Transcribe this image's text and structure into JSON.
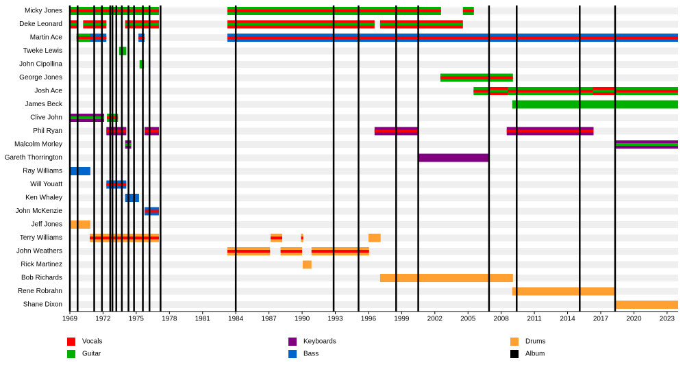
{
  "chart_data": {
    "type": "timeline",
    "xlim": [
      1969,
      2024
    ],
    "xticks": [
      1969,
      1972,
      1975,
      1978,
      1981,
      1984,
      1987,
      1990,
      1993,
      1996,
      1999,
      2002,
      2005,
      2008,
      2011,
      2014,
      2017,
      2020,
      2023
    ],
    "roles": [
      {
        "name": "Vocals",
        "color": "#ff0000"
      },
      {
        "name": "Guitar",
        "color": "#00b000"
      },
      {
        "name": "Keyboards",
        "color": "#800080"
      },
      {
        "name": "Bass",
        "color": "#0066cc"
      },
      {
        "name": "Drums",
        "color": "#ffa030"
      },
      {
        "name": "Album",
        "color": "#000000"
      }
    ],
    "albums": [
      1969.0,
      1969.7,
      1971.2,
      1971.9,
      1972.65,
      1972.85,
      1973.2,
      1973.7,
      1974.3,
      1974.8,
      1975.6,
      1976.2,
      1977.2,
      1984.0,
      1992.85,
      1995.1,
      1998.5,
      2000.5,
      2006.9,
      2009.4,
      2015.1,
      2018.3
    ],
    "rows": [
      {
        "name": "Micky Jones",
        "periods": [
          {
            "start": 1969,
            "end": 1977.05,
            "role": "Guitar",
            "stripe": "Vocals"
          },
          {
            "start": 1983.24,
            "end": 2002.56,
            "role": "Guitar",
            "stripe": "Vocals"
          },
          {
            "start": 2004.54,
            "end": 2005.53,
            "role": "Guitar",
            "stripe": "Vocals"
          }
        ]
      },
      {
        "name": "Deke Leonard",
        "periods": [
          {
            "start": 1969,
            "end": 1969.7,
            "role": "Vocals",
            "stripe": "Guitar"
          },
          {
            "start": 1970.2,
            "end": 1972.3,
            "role": "Vocals",
            "stripe": "Guitar"
          },
          {
            "start": 1974,
            "end": 1977.05,
            "role": "Vocals",
            "stripe": "Guitar"
          },
          {
            "start": 1983.24,
            "end": 1996.55,
            "role": "Vocals",
            "stripe": "Guitar"
          },
          {
            "start": 1997.05,
            "end": 2004.54,
            "role": "Vocals",
            "stripe": "Guitar"
          }
        ]
      },
      {
        "name": "Martin Ace",
        "periods": [
          {
            "start": 1969.6,
            "end": 1970.8,
            "role": "Guitar",
            "stripe": "Vocals"
          },
          {
            "start": 1970.8,
            "end": 1972.3,
            "role": "Bass",
            "stripe": "Vocals"
          },
          {
            "start": 1975.2,
            "end": 1975.75,
            "role": "Bass",
            "stripe": "Vocals"
          },
          {
            "start": 1983.24,
            "end": 2024,
            "role": "Bass",
            "stripe": "Vocals"
          }
        ]
      },
      {
        "name": "Tweke Lewis",
        "periods": [
          {
            "start": 1973.45,
            "end": 1974.1,
            "role": "Guitar"
          }
        ]
      },
      {
        "name": "John Cipollina",
        "periods": [
          {
            "start": 1975.3,
            "end": 1975.7,
            "role": "Guitar"
          }
        ]
      },
      {
        "name": "George Jones",
        "periods": [
          {
            "start": 2002.5,
            "end": 2009.06,
            "role": "Guitar",
            "stripe": "Vocals"
          }
        ]
      },
      {
        "name": "Josh Ace",
        "periods": [
          {
            "start": 2005.5,
            "end": 2024,
            "role": "Guitar",
            "stripe": "Vocals"
          },
          {
            "start": 2006.85,
            "end": 2008.6,
            "role": "Vocals",
            "stripe": "Guitar"
          },
          {
            "start": 2016.3,
            "end": 2018.35,
            "role": "Vocals",
            "stripe": "Guitar"
          }
        ]
      },
      {
        "name": "James Beck",
        "periods": [
          {
            "start": 2009,
            "end": 2024,
            "role": "Guitar"
          }
        ]
      },
      {
        "name": "Clive John",
        "periods": [
          {
            "start": 1969,
            "end": 1972.1,
            "role": "Keyboards",
            "stripe": "Guitar"
          },
          {
            "start": 1972.35,
            "end": 1973.35,
            "role": "Guitar",
            "stripe": "Vocals"
          }
        ]
      },
      {
        "name": "Phil Ryan",
        "periods": [
          {
            "start": 1972.3,
            "end": 1974.1,
            "role": "Keyboards",
            "stripe": "Vocals"
          },
          {
            "start": 1975.75,
            "end": 1977.05,
            "role": "Keyboards",
            "stripe": "Vocals"
          },
          {
            "start": 1996.55,
            "end": 2000.5,
            "role": "Keyboards",
            "stripe": "Vocals"
          },
          {
            "start": 2008.5,
            "end": 2016.35,
            "role": "Keyboards",
            "stripe": "Vocals"
          }
        ]
      },
      {
        "name": "Malcolm Morley",
        "periods": [
          {
            "start": 1974,
            "end": 1974.55,
            "role": "Keyboards",
            "stripe": "Guitar"
          },
          {
            "start": 2018.35,
            "end": 2024,
            "role": "Keyboards",
            "stripe": "Guitar"
          }
        ]
      },
      {
        "name": "Gareth Thorrington",
        "periods": [
          {
            "start": 2000.5,
            "end": 2006.95,
            "role": "Keyboards"
          }
        ]
      },
      {
        "name": "Ray Williams",
        "periods": [
          {
            "start": 1969,
            "end": 1970.85,
            "role": "Bass"
          }
        ]
      },
      {
        "name": "Will Youatt",
        "periods": [
          {
            "start": 1972.3,
            "end": 1974.1,
            "role": "Bass",
            "stripe": "Vocals"
          }
        ]
      },
      {
        "name": "Ken Whaley",
        "periods": [
          {
            "start": 1974,
            "end": 1975.25,
            "role": "Bass"
          }
        ]
      },
      {
        "name": "John McKenzie",
        "periods": [
          {
            "start": 1975.75,
            "end": 1977.05,
            "role": "Bass",
            "stripe": "Vocals"
          }
        ]
      },
      {
        "name": "Jeff Jones",
        "periods": [
          {
            "start": 1969,
            "end": 1970.85,
            "role": "Drums"
          }
        ]
      },
      {
        "name": "Terry Williams",
        "periods": [
          {
            "start": 1970.8,
            "end": 1977.05,
            "role": "Drums",
            "stripe": "Vocals"
          },
          {
            "start": 1987.15,
            "end": 1988.2,
            "role": "Drums",
            "stripe": "Vocals"
          },
          {
            "start": 1989.9,
            "end": 1990.1,
            "role": "Drums",
            "stripe": "Vocals"
          },
          {
            "start": 1996,
            "end": 1997.1,
            "role": "Drums"
          }
        ]
      },
      {
        "name": "John Weathers",
        "periods": [
          {
            "start": 1983.24,
            "end": 1987.1,
            "role": "Drums",
            "stripe": "Vocals"
          },
          {
            "start": 1988.05,
            "end": 1990,
            "role": "Drums",
            "stripe": "Vocals"
          },
          {
            "start": 1990.85,
            "end": 1996.05,
            "role": "Drums",
            "stripe": "Vocals"
          }
        ]
      },
      {
        "name": "Rick Martinez",
        "periods": [
          {
            "start": 1990.05,
            "end": 1990.85,
            "role": "Drums"
          }
        ]
      },
      {
        "name": "Bob Richards",
        "periods": [
          {
            "start": 1997.05,
            "end": 2009.06,
            "role": "Drums"
          }
        ]
      },
      {
        "name": "Rene Robrahn",
        "periods": [
          {
            "start": 2009,
            "end": 2018.35,
            "role": "Drums"
          }
        ]
      },
      {
        "name": "Shane Dixon",
        "periods": [
          {
            "start": 2018.3,
            "end": 2024,
            "role": "Drums"
          }
        ]
      }
    ]
  }
}
